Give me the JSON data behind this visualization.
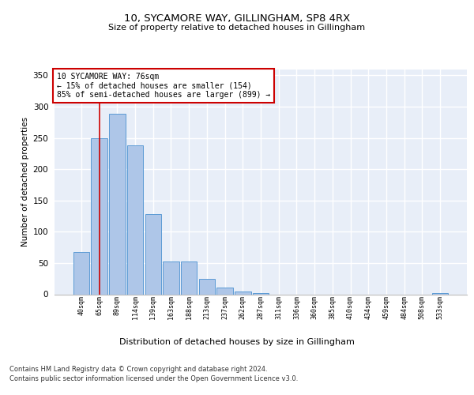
{
  "title": "10, SYCAMORE WAY, GILLINGHAM, SP8 4RX",
  "subtitle": "Size of property relative to detached houses in Gillingham",
  "xlabel": "Distribution of detached houses by size in Gillingham",
  "ylabel": "Number of detached properties",
  "bar_values": [
    68,
    250,
    288,
    238,
    128,
    53,
    53,
    25,
    11,
    5,
    2,
    0,
    0,
    0,
    0,
    0,
    0,
    0,
    0,
    0,
    2
  ],
  "bar_labels": [
    "40sqm",
    "65sqm",
    "89sqm",
    "114sqm",
    "139sqm",
    "163sqm",
    "188sqm",
    "213sqm",
    "237sqm",
    "262sqm",
    "287sqm",
    "311sqm",
    "336sqm",
    "360sqm",
    "385sqm",
    "410sqm",
    "434sqm",
    "459sqm",
    "484sqm",
    "508sqm",
    "533sqm"
  ],
  "bar_color": "#aec6e8",
  "bar_edge_color": "#5b9bd5",
  "background_color": "#e8eef8",
  "grid_color": "#ffffff",
  "red_line_x": 1.0,
  "annotation_text": "10 SYCAMORE WAY: 76sqm\n← 15% of detached houses are smaller (154)\n85% of semi-detached houses are larger (899) →",
  "annotation_box_color": "#ffffff",
  "annotation_box_edge": "#cc0000",
  "ylim": [
    0,
    360
  ],
  "yticks": [
    0,
    50,
    100,
    150,
    200,
    250,
    300,
    350
  ],
  "footer_line1": "Contains HM Land Registry data © Crown copyright and database right 2024.",
  "footer_line2": "Contains public sector information licensed under the Open Government Licence v3.0."
}
